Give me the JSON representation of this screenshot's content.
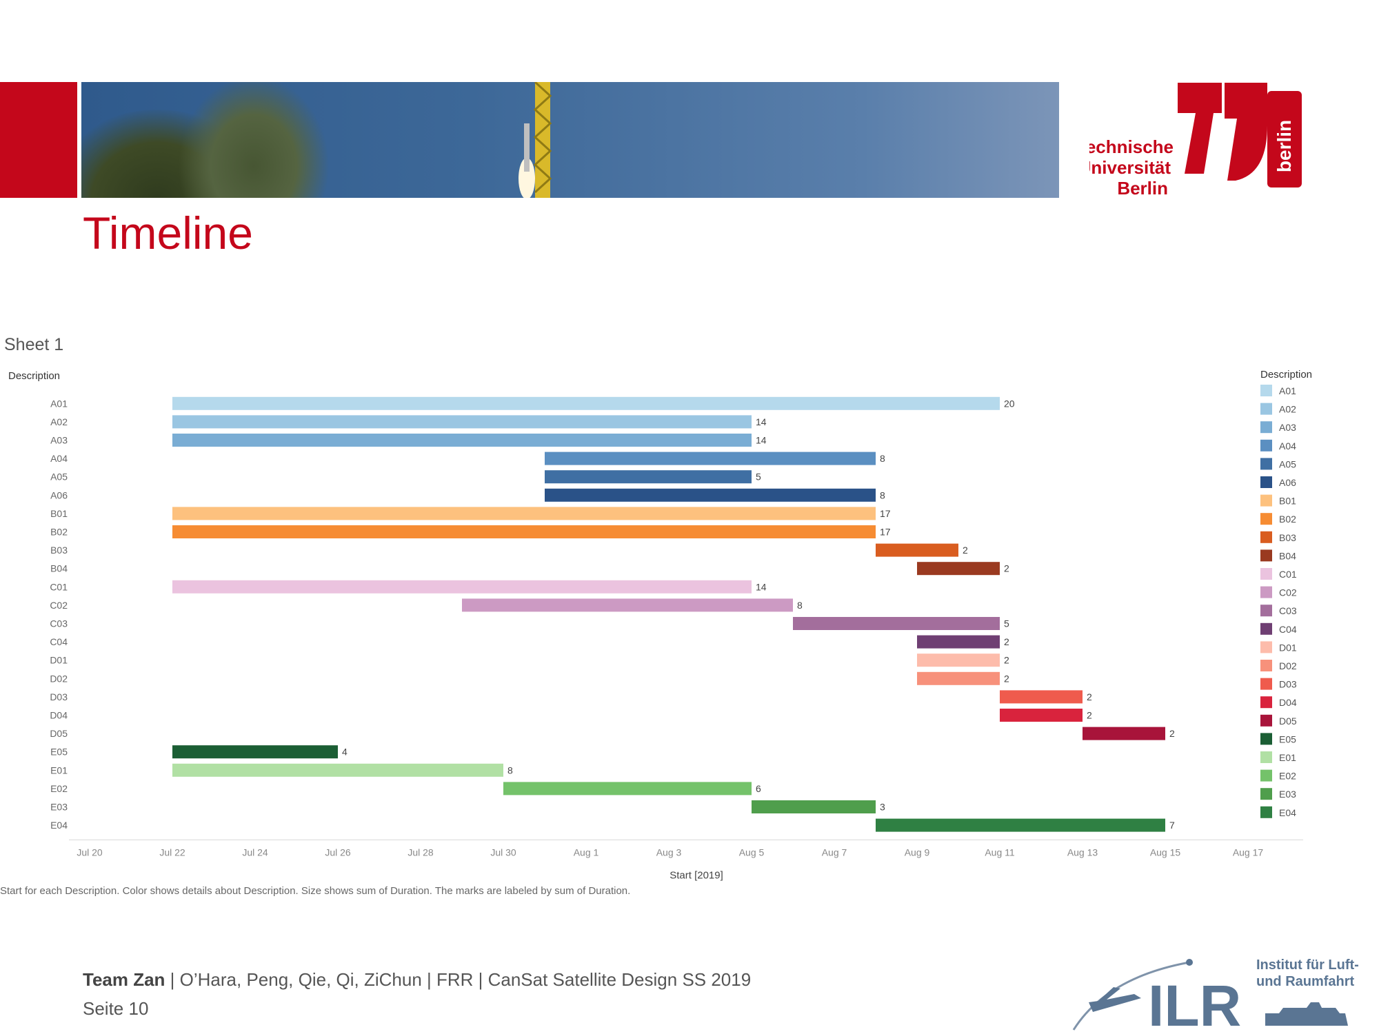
{
  "slide": {
    "title": "Timeline",
    "sheet_title": "Sheet 1",
    "caption": "Start for each Description.  Color shows details about Description.  Size shows sum of Duration.  The marks are labeled by sum of Duration.",
    "footer": {
      "team": "Team Zan",
      "rest": " | O’Hara, Peng, Qie, Qi, ZiChun | FRR | CanSat Satellite Design SS 2019",
      "page": "Seite 10"
    }
  },
  "logos": {
    "tu": {
      "line1": "Technische",
      "line2": "Universität",
      "line3": "Berlin",
      "side": "berlin",
      "color": "#c4071b"
    },
    "ilr": {
      "text": "ILR",
      "line1": "Institut für Luft-",
      "line2": "und Raumfahrt",
      "color": "#5a7593"
    }
  },
  "chart_data": {
    "type": "gantt",
    "y_header": "Description",
    "legend_title": "Description",
    "legend_position": "right",
    "xlabel": "Start [2019]",
    "x_ticks": [
      "Jul 20",
      "Jul 22",
      "Jul 24",
      "Jul 26",
      "Jul 28",
      "Jul 30",
      "Aug 1",
      "Aug 3",
      "Aug 5",
      "Aug 7",
      "Aug 9",
      "Aug 11",
      "Aug 13",
      "Aug 15",
      "Aug 17"
    ],
    "xlim": [
      "2019-07-20",
      "2019-08-17"
    ],
    "rows": [
      {
        "label": "A01",
        "start": "2019-07-22",
        "duration": 20,
        "color": "#b5d9ec"
      },
      {
        "label": "A02",
        "start": "2019-07-22",
        "duration": 14,
        "color": "#9ac6e2"
      },
      {
        "label": "A03",
        "start": "2019-07-22",
        "duration": 14,
        "color": "#7aadd4"
      },
      {
        "label": "A04",
        "start": "2019-07-31",
        "duration": 8,
        "color": "#5b8fc1"
      },
      {
        "label": "A05",
        "start": "2019-07-31",
        "duration": 5,
        "color": "#3f6fa3"
      },
      {
        "label": "A06",
        "start": "2019-07-31",
        "duration": 8,
        "color": "#2a5288"
      },
      {
        "label": "B01",
        "start": "2019-07-22",
        "duration": 17,
        "color": "#fdc17e"
      },
      {
        "label": "B02",
        "start": "2019-07-22",
        "duration": 17,
        "color": "#f68c33"
      },
      {
        "label": "B03",
        "start": "2019-08-08",
        "duration": 2,
        "color": "#d95d20"
      },
      {
        "label": "B04",
        "start": "2019-08-09",
        "duration": 2,
        "color": "#9a3a20"
      },
      {
        "label": "C01",
        "start": "2019-07-22",
        "duration": 14,
        "color": "#ebc3df"
      },
      {
        "label": "C02",
        "start": "2019-07-29",
        "duration": 8,
        "color": "#cc9ac3"
      },
      {
        "label": "C03",
        "start": "2019-08-06",
        "duration": 5,
        "color": "#a36e9c"
      },
      {
        "label": "C04",
        "start": "2019-08-09",
        "duration": 2,
        "color": "#6f3f73"
      },
      {
        "label": "D01",
        "start": "2019-08-09",
        "duration": 2,
        "color": "#fdbcab"
      },
      {
        "label": "D02",
        "start": "2019-08-09",
        "duration": 2,
        "color": "#f7917b"
      },
      {
        "label": "D03",
        "start": "2019-08-11",
        "duration": 2,
        "color": "#ef5b4d"
      },
      {
        "label": "D04",
        "start": "2019-08-11",
        "duration": 2,
        "color": "#d9233d"
      },
      {
        "label": "D05",
        "start": "2019-08-13",
        "duration": 2,
        "color": "#a8143a"
      },
      {
        "label": "E05",
        "start": "2019-07-22",
        "duration": 4,
        "color": "#1b5e34"
      },
      {
        "label": "E01",
        "start": "2019-07-22",
        "duration": 8,
        "color": "#b1e0a4"
      },
      {
        "label": "E02",
        "start": "2019-07-30",
        "duration": 6,
        "color": "#74c26a"
      },
      {
        "label": "E03",
        "start": "2019-08-05",
        "duration": 3,
        "color": "#4f9e4c"
      },
      {
        "label": "E04",
        "start": "2019-08-08",
        "duration": 7,
        "color": "#2f8043"
      }
    ]
  }
}
